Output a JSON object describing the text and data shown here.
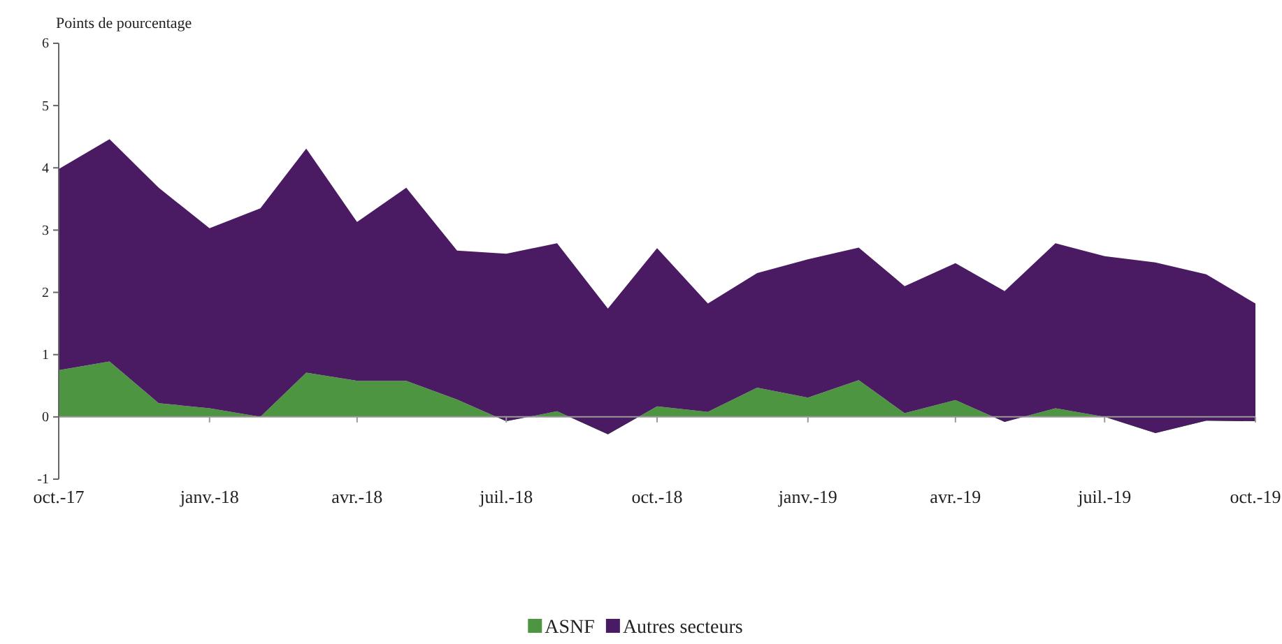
{
  "chart_data": {
    "type": "area",
    "stacked": true,
    "ylabel": "Points de pourcentage",
    "x": [
      "2017-10",
      "2017-11",
      "2017-12",
      "2018-01",
      "2018-02",
      "2018-03",
      "2018-04",
      "2018-05",
      "2018-06",
      "2018-07",
      "2018-08",
      "2018-09",
      "2018-10",
      "2018-11",
      "2018-12",
      "2019-01",
      "2019-02",
      "2019-03",
      "2019-04",
      "2019-05",
      "2019-06",
      "2019-07",
      "2019-08",
      "2019-09",
      "2019-10"
    ],
    "series": [
      {
        "name": "ASNF",
        "color": "#4e9541",
        "values": [
          0.75,
          0.89,
          0.22,
          0.14,
          0.0,
          0.71,
          0.58,
          0.58,
          0.28,
          -0.07,
          0.09,
          -0.28,
          0.17,
          0.08,
          0.47,
          0.31,
          0.59,
          0.06,
          0.27,
          -0.08,
          0.14,
          0.0,
          -0.26,
          -0.06,
          -0.07
        ]
      },
      {
        "name": "Autres secteurs",
        "color": "#4a1a62",
        "values": [
          3.23,
          3.57,
          3.46,
          2.89,
          3.35,
          3.6,
          2.55,
          3.1,
          2.39,
          2.69,
          2.7,
          2.02,
          2.54,
          1.74,
          1.84,
          2.22,
          2.13,
          2.04,
          2.2,
          2.1,
          2.65,
          2.58,
          2.74,
          2.35,
          1.89
        ]
      }
    ],
    "xlim": [
      "2017-10",
      "2019-10"
    ],
    "xticks": [
      {
        "value": "2017-10",
        "label": "oct.-17"
      },
      {
        "value": "2018-01",
        "label": "janv.-18"
      },
      {
        "value": "2018-04",
        "label": "avr.-18"
      },
      {
        "value": "2018-07",
        "label": "juil.-18"
      },
      {
        "value": "2018-10",
        "label": "oct.-18"
      },
      {
        "value": "2019-01",
        "label": "janv.-19"
      },
      {
        "value": "2019-04",
        "label": "avr.-19"
      },
      {
        "value": "2019-07",
        "label": "juil.-19"
      },
      {
        "value": "2019-10",
        "label": "oct.-19"
      }
    ],
    "ylim": [
      -1,
      6
    ],
    "yticks": [
      -1,
      0,
      1,
      2,
      3,
      4,
      5,
      6
    ],
    "legend": "bottom"
  }
}
